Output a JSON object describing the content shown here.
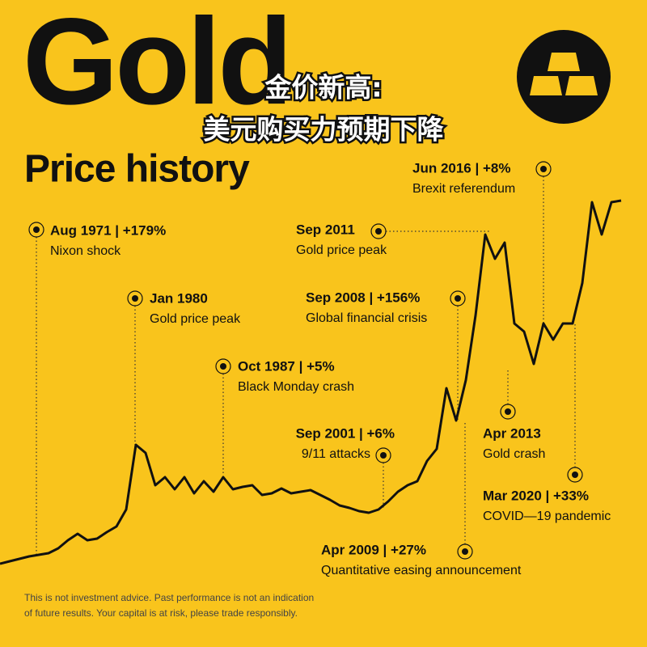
{
  "chart_data": {
    "type": "line",
    "title": "Gold",
    "subtitle": "Price history",
    "overlay": [
      "金价新高:",
      "美元购买力预期下降"
    ],
    "categories": [
      null,
      null,
      null,
      null,
      null,
      null,
      null,
      null,
      null,
      null,
      null,
      null,
      null,
      null,
      null,
      null,
      null,
      null,
      null,
      null,
      null,
      null,
      null,
      null,
      null,
      null,
      null,
      null,
      null,
      null,
      null,
      null,
      null,
      null,
      null,
      null,
      null,
      null,
      null,
      null,
      null,
      null,
      null,
      null,
      null,
      null,
      null,
      null,
      null,
      null,
      null,
      null,
      null,
      null,
      null,
      null,
      null,
      null,
      null,
      null,
      null,
      null,
      null,
      null,
      null
    ],
    "values": [
      0.6,
      1.2,
      1.8,
      2.4,
      2.8,
      3.2,
      4.4,
      6.4,
      8,
      6.4,
      6.8,
      8.4,
      9.8,
      14,
      30,
      28,
      20,
      22,
      19,
      22,
      18,
      21,
      18.4,
      22,
      19,
      19.6,
      20,
      17.6,
      18,
      19.2,
      18,
      18.4,
      18.8,
      17.6,
      16.4,
      15,
      14.4,
      13.6,
      13.2,
      14,
      16,
      18.4,
      20,
      21,
      26,
      29,
      44,
      36,
      46,
      62,
      82,
      76,
      80,
      60,
      58,
      50,
      60,
      56,
      60,
      60,
      70,
      90,
      82,
      90,
      90.4
    ],
    "color": "#111111",
    "ylim": [
      0,
      100
    ],
    "annotations": [
      {
        "heading": "Aug 1971 | +179%",
        "caption": "Nixon shock"
      },
      {
        "heading": "Jan 1980",
        "caption": "Gold price peak"
      },
      {
        "heading": "Oct 1987 | +5%",
        "caption": "Black Monday crash"
      },
      {
        "heading": "Sep 2001 | +6%",
        "caption": "9/11 attacks"
      },
      {
        "heading": "Sep 2011",
        "caption": "Gold price peak"
      },
      {
        "heading": "Sep 2008 | +156%",
        "caption": "Global financial crisis"
      },
      {
        "heading": "Jun 2016 | +8%",
        "caption": "Brexit referendum"
      },
      {
        "heading": "Apr 2013",
        "caption": "Gold crash"
      },
      {
        "heading": "Mar 2020 | +33%",
        "caption": "COVID—19 pandemic"
      },
      {
        "heading": "Apr 2009 | +27%",
        "caption": "Quantitative easing announcement"
      }
    ],
    "footnote": [
      "This is not investment advice. Past performance is not an indication",
      "of future results. Your capital is at risk, please trade responsibly."
    ]
  }
}
